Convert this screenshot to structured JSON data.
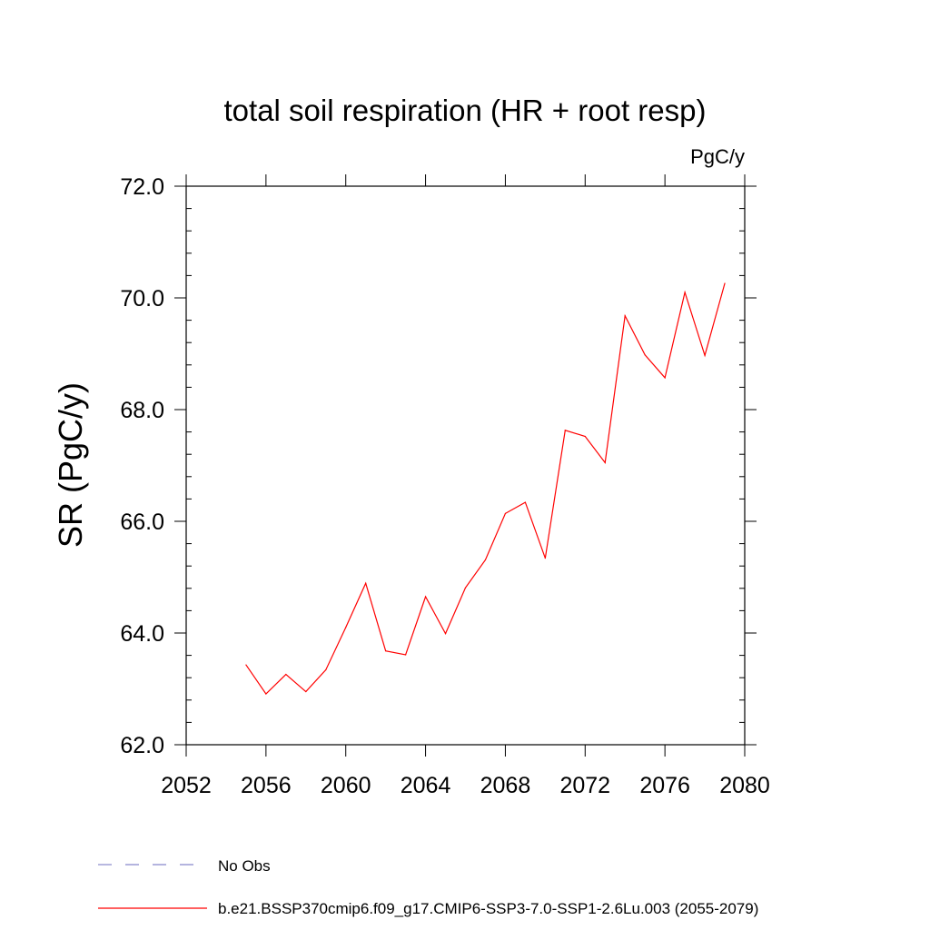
{
  "chart_data": {
    "type": "line",
    "title": "total soil respiration (HR + root resp)",
    "units": "PgC/y",
    "ylabel": "SR  (PgC/y)",
    "xlabel": "",
    "xlim": [
      2052,
      2080
    ],
    "ylim": [
      62.0,
      72.0
    ],
    "x_ticks": [
      2052,
      2056,
      2060,
      2064,
      2068,
      2072,
      2076,
      2080
    ],
    "x_tick_labels": [
      "2052",
      "2056",
      "2060",
      "2064",
      "2068",
      "2072",
      "2076",
      "2080"
    ],
    "y_ticks": [
      62.0,
      64.0,
      66.0,
      68.0,
      70.0,
      72.0
    ],
    "y_tick_labels": [
      "62.0",
      "64.0",
      "66.0",
      "68.0",
      "70.0",
      "72.0"
    ],
    "grid": false,
    "series": [
      {
        "name": "b.e21.BSSP370cmip6.f09_g17.CMIP6-SSP3-7.0-SSP1-2.6Lu.003 (2055-2079)",
        "color": "#ff0000",
        "x": [
          2055,
          2056,
          2057,
          2058,
          2059,
          2060,
          2061,
          2062,
          2063,
          2064,
          2065,
          2066,
          2067,
          2068,
          2069,
          2070,
          2071,
          2072,
          2073,
          2074,
          2075,
          2076,
          2077,
          2078,
          2079
        ],
        "values": [
          63.43,
          62.91,
          63.26,
          62.95,
          63.34,
          64.1,
          64.89,
          63.68,
          63.61,
          64.65,
          63.99,
          64.81,
          65.31,
          66.14,
          66.34,
          65.34,
          67.63,
          67.52,
          67.05,
          69.68,
          68.98,
          68.57,
          70.1,
          68.97,
          70.26
        ]
      }
    ],
    "legend": [
      {
        "label": "No Obs",
        "style": "dashed",
        "color": "#8888cc"
      },
      {
        "label": "b.e21.BSSP370cmip6.f09_g17.CMIP6-SSP3-7.0-SSP1-2.6Lu.003 (2055-2079)",
        "style": "solid",
        "color": "#ff0000"
      }
    ],
    "legend_position": "bottom-left"
  }
}
